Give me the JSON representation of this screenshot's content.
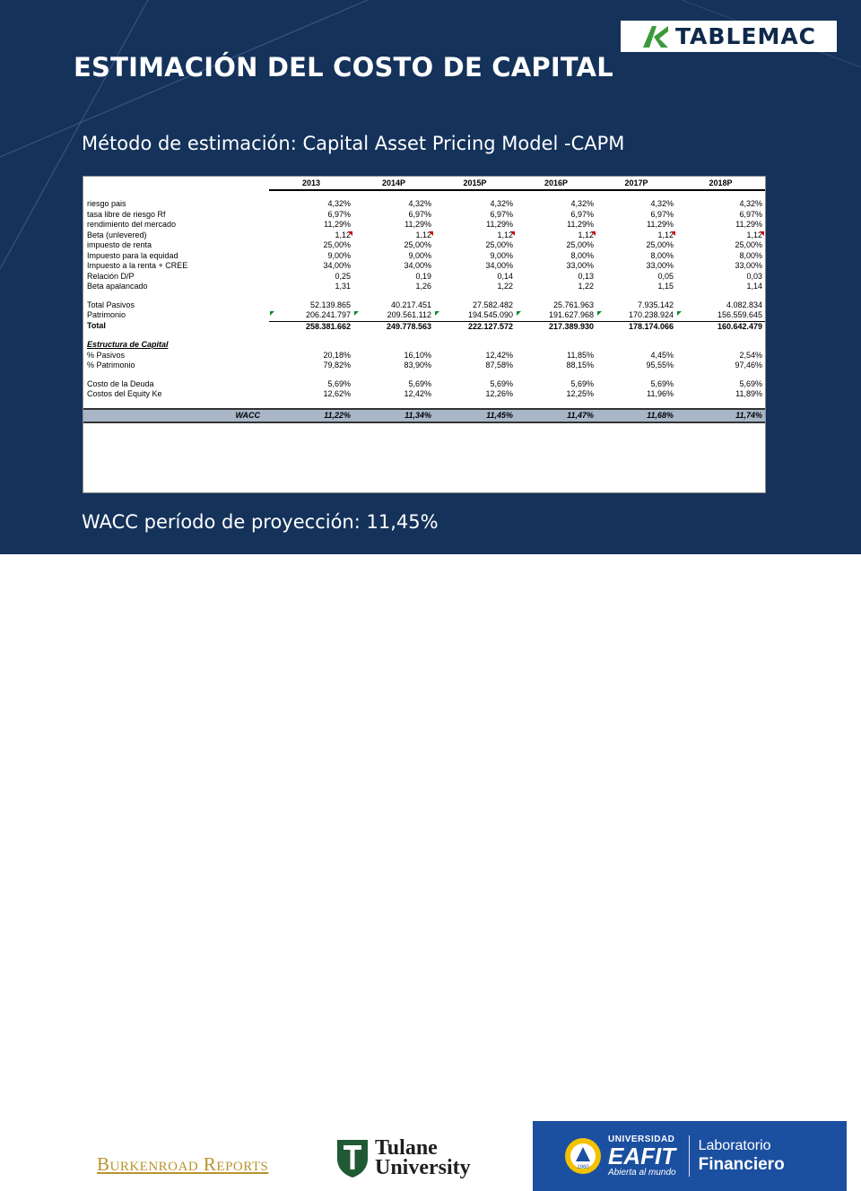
{
  "slide": {
    "title": "ESTIMACIÓN DEL COSTO DE CAPITAL",
    "subtitle": "Método de estimación: Capital Asset Pricing Model -CAPM",
    "footer_note": "WACC período de proyección: 11,45%",
    "background_color": "#14325a"
  },
  "logos": {
    "tablemac": "TABLEMAC",
    "burkenroad": "Burkenroad Reports",
    "tulane_line1": "Tulane",
    "tulane_line2": "University",
    "eafit_univ": "UNIVERSIDAD",
    "eafit_name": "EAFIT",
    "eafit_tagline": "Abierta al mundo",
    "eafit_seal_year": "1960",
    "lab_line1": "Laboratorio",
    "lab_line2": "Financiero"
  },
  "table": {
    "headers": [
      "2013",
      "2014P",
      "2015P",
      "2016P",
      "2017P",
      "2018P"
    ],
    "rows": [
      {
        "label": "riesgo pais",
        "values": [
          "4,32%",
          "4,32%",
          "4,32%",
          "4,32%",
          "4,32%",
          "4,32%"
        ]
      },
      {
        "label": "tasa libre de riesgo Rf",
        "values": [
          "6,97%",
          "6,97%",
          "6,97%",
          "6,97%",
          "6,97%",
          "6,97%"
        ]
      },
      {
        "label": "rendimiento del mercado",
        "values": [
          "11,29%",
          "11,29%",
          "11,29%",
          "11,29%",
          "11,29%",
          "11,29%"
        ]
      },
      {
        "label": "Beta (unlevered)",
        "values": [
          "1,12",
          "1,12",
          "1,12",
          "1,12",
          "1,12",
          "1,12"
        ]
      },
      {
        "label": "impuesto de renta",
        "values": [
          "25,00%",
          "25,00%",
          "25,00%",
          "25,00%",
          "25,00%",
          "25,00%"
        ]
      },
      {
        "label": "Impuesto para la equidad",
        "values": [
          "9,00%",
          "9,00%",
          "9,00%",
          "8,00%",
          "8,00%",
          "8,00%"
        ]
      },
      {
        "label": "Impuesto a la renta + CREE",
        "values": [
          "34,00%",
          "34,00%",
          "34,00%",
          "33,00%",
          "33,00%",
          "33,00%"
        ]
      },
      {
        "label": "Relación D/P",
        "values": [
          "0,25",
          "0,19",
          "0,14",
          "0,13",
          "0,05",
          "0,03"
        ]
      },
      {
        "label": "Beta apalancado",
        "values": [
          "1,31",
          "1,26",
          "1,22",
          "1,22",
          "1,15",
          "1,14"
        ]
      },
      {
        "label": "Total Pasivos",
        "values": [
          "52.139.865",
          "40.217.451",
          "27.582.482",
          "25.761.963",
          "7.935.142",
          "4.082.834"
        ]
      },
      {
        "label": "Patrimonio",
        "values": [
          "206.241.797",
          "209.561.112",
          "194.545.090",
          "191.627.968",
          "170.238.924",
          "156.559.645"
        ]
      },
      {
        "label": "Total",
        "values": [
          "258.381.662",
          "249.778.563",
          "222.127.572",
          "217.389.930",
          "178.174.066",
          "160.642.479"
        ]
      },
      {
        "label": "Estructura de Capital",
        "values": [
          "",
          "",
          "",
          "",
          "",
          ""
        ]
      },
      {
        "label": "% Pasivos",
        "values": [
          "20,18%",
          "16,10%",
          "12,42%",
          "11,85%",
          "4,45%",
          "2,54%"
        ]
      },
      {
        "label": "% Patrimonio",
        "values": [
          "79,82%",
          "83,90%",
          "87,58%",
          "88,15%",
          "95,55%",
          "97,46%"
        ]
      },
      {
        "label": "Costo de la Deuda",
        "values": [
          "5,69%",
          "5,69%",
          "5,69%",
          "5,69%",
          "5,69%",
          "5,69%"
        ]
      },
      {
        "label": "Costos del Equity Ke",
        "values": [
          "12,62%",
          "12,42%",
          "12,26%",
          "12,25%",
          "11,96%",
          "11,89%"
        ]
      },
      {
        "label": "WACC",
        "values": [
          "11,22%",
          "11,34%",
          "11,45%",
          "11,47%",
          "11,68%",
          "11,74%"
        ]
      }
    ]
  }
}
